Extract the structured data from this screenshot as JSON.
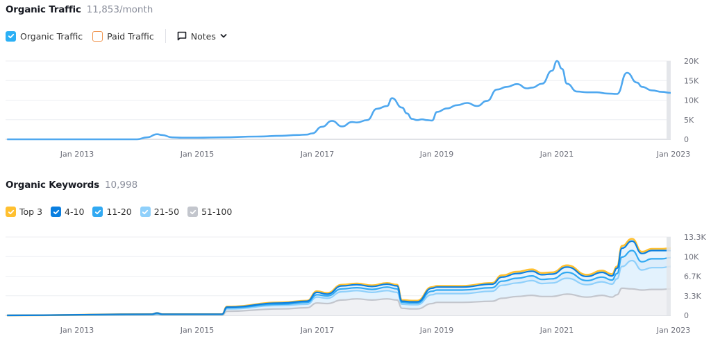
{
  "traffic": {
    "title": "Organic Traffic",
    "value": "11,853/month",
    "legend": [
      {
        "label": "Organic Traffic",
        "checked": true,
        "color": "#2bb0f5"
      },
      {
        "label": "Paid Traffic",
        "checked": false,
        "color": "#f0954f"
      }
    ],
    "notes_label": "Notes"
  },
  "keywords": {
    "title": "Organic Keywords",
    "value": "10,998",
    "legend": [
      {
        "label": "Top 3",
        "checked": true,
        "color": "#ffc030"
      },
      {
        "label": "4-10",
        "checked": true,
        "color": "#0a7fe0"
      },
      {
        "label": "11-20",
        "checked": true,
        "color": "#31a9f2"
      },
      {
        "label": "21-50",
        "checked": true,
        "color": "#8fd0fb"
      },
      {
        "label": "51-100",
        "checked": true,
        "color": "#c3c6cd"
      }
    ]
  },
  "chart_data": [
    {
      "type": "line",
      "title": "Organic Traffic",
      "subtitle": "11,853/month",
      "xlabel": "",
      "ylabel": "",
      "x_ticks": [
        "Jan 2013",
        "Jan 2015",
        "Jan 2017",
        "Jan 2019",
        "Jan 2021",
        "Jan 2023"
      ],
      "y_ticks": [
        "0",
        "5K",
        "10K",
        "15K",
        "20K"
      ],
      "ylim": [
        0,
        20000
      ],
      "grid": true,
      "legend_position": "top-left",
      "x": [
        "2011-11",
        "2012-06",
        "2013-01",
        "2013-06",
        "2014-01",
        "2014-03",
        "2014-05",
        "2014-06",
        "2014-08",
        "2014-10",
        "2015-01",
        "2015-06",
        "2016-01",
        "2016-06",
        "2016-09",
        "2016-11",
        "2016-12",
        "2017-02",
        "2017-04",
        "2017-06",
        "2017-08",
        "2017-09",
        "2017-11",
        "2018-01",
        "2018-03",
        "2018-04",
        "2018-06",
        "2018-07",
        "2018-08",
        "2018-09",
        "2018-10",
        "2018-11",
        "2018-12",
        "2019-01",
        "2019-03",
        "2019-05",
        "2019-07",
        "2019-09",
        "2019-11",
        "2020-01",
        "2020-03",
        "2020-05",
        "2020-07",
        "2020-08",
        "2020-10",
        "2020-12",
        "2021-01",
        "2021-02",
        "2021-03",
        "2021-05",
        "2021-07",
        "2021-09",
        "2021-11",
        "2022-01",
        "2022-03",
        "2022-05",
        "2022-06",
        "2022-08",
        "2022-10",
        "2022-12"
      ],
      "series": [
        {
          "name": "Organic Traffic",
          "color": "#4fa8ef",
          "values": [
            0,
            0,
            0,
            0,
            0,
            500,
            1300,
            1100,
            500,
            400,
            400,
            500,
            700,
            900,
            1100,
            1200,
            1500,
            3200,
            4700,
            3300,
            4400,
            4300,
            4900,
            7800,
            8500,
            10500,
            8100,
            6600,
            5200,
            4900,
            5100,
            4900,
            4800,
            7000,
            7900,
            8700,
            9300,
            8500,
            9800,
            12700,
            13400,
            14100,
            13000,
            13200,
            14200,
            17500,
            20000,
            18000,
            14200,
            12200,
            12000,
            12000,
            11700,
            11600,
            17000,
            14500,
            13400,
            12500,
            12100,
            11853
          ]
        }
      ]
    },
    {
      "type": "area",
      "title": "Organic Keywords",
      "subtitle": "10,998",
      "xlabel": "",
      "ylabel": "",
      "x_ticks": [
        "Jan 2013",
        "Jan 2015",
        "Jan 2017",
        "Jan 2019",
        "Jan 2021",
        "Jan 2023"
      ],
      "y_ticks": [
        "0",
        "3.3K",
        "6.7K",
        "10K",
        "13.3K"
      ],
      "ylim": [
        0,
        13300
      ],
      "grid": true,
      "stacked": true,
      "legend_position": "top-left",
      "x": [
        "2011-11",
        "2014-04",
        "2014-05",
        "2014-06",
        "2015-06",
        "2015-07",
        "2016-06",
        "2016-11",
        "2017-01",
        "2017-03",
        "2017-06",
        "2017-09",
        "2017-12",
        "2018-03",
        "2018-05",
        "2018-06",
        "2018-08",
        "2018-09",
        "2018-12",
        "2019-01",
        "2019-06",
        "2019-12",
        "2020-02",
        "2020-05",
        "2020-08",
        "2020-10",
        "2020-12",
        "2021-03",
        "2021-07",
        "2021-10",
        "2021-12",
        "2022-01",
        "2022-02",
        "2022-04",
        "2022-06",
        "2022-08",
        "2022-10",
        "2022-12"
      ],
      "series": [
        {
          "name": "Top 3",
          "color": "#ffc030",
          "values": [
            0,
            200,
            400,
            200,
            200,
            1500,
            2200,
            2500,
            4100,
            3800,
            5200,
            5400,
            5100,
            5500,
            5200,
            2600,
            2500,
            2500,
            4800,
            5000,
            5000,
            5500,
            6800,
            7400,
            7800,
            7200,
            7300,
            8500,
            6900,
            7600,
            7000,
            8300,
            11800,
            13000,
            10800,
            11300,
            11300,
            11400
          ]
        },
        {
          "name": "4-10",
          "color": "#0a7fe0",
          "values": [
            0,
            200,
            400,
            200,
            200,
            1400,
            2100,
            2400,
            3900,
            3600,
            5000,
            5200,
            4900,
            5300,
            5000,
            2400,
            2300,
            2300,
            4600,
            4800,
            4800,
            5300,
            6500,
            7100,
            7500,
            6900,
            7000,
            8200,
            6600,
            7300,
            6700,
            8000,
            11400,
            12600,
            10500,
            11000,
            11000,
            11000
          ]
        },
        {
          "name": "11-20",
          "color": "#31a9f2",
          "values": [
            0,
            150,
            300,
            150,
            150,
            1300,
            1900,
            2200,
            3500,
            3300,
            4500,
            4700,
            4400,
            4800,
            4500,
            2200,
            2100,
            2100,
            4100,
            4300,
            4300,
            4700,
            5800,
            6300,
            6700,
            6100,
            6200,
            7300,
            5900,
            6500,
            6000,
            7100,
            9900,
            11000,
            9100,
            9600,
            9600,
            9800
          ]
        },
        {
          "name": "21-50",
          "color": "#8fd0fb",
          "values": [
            0,
            100,
            200,
            100,
            100,
            1100,
            1700,
            1900,
            3100,
            2900,
            4000,
            4200,
            3900,
            4200,
            3900,
            1900,
            1800,
            1800,
            3500,
            3700,
            3700,
            4100,
            5100,
            5500,
            5900,
            5400,
            5500,
            6300,
            5200,
            5700,
            5300,
            6200,
            8300,
            9300,
            7700,
            8100,
            8100,
            8300
          ]
        },
        {
          "name": "51-100",
          "color": "#c3c6cd",
          "values": [
            0,
            50,
            100,
            50,
            50,
            700,
            1100,
            1300,
            2100,
            2000,
            2600,
            2800,
            2600,
            2800,
            2600,
            1200,
            1100,
            1100,
            2000,
            2200,
            2200,
            2400,
            2900,
            3200,
            3400,
            3200,
            3200,
            3600,
            3100,
            3400,
            3100,
            3500,
            4600,
            4500,
            4300,
            4400,
            4400,
            4500
          ]
        }
      ]
    }
  ]
}
